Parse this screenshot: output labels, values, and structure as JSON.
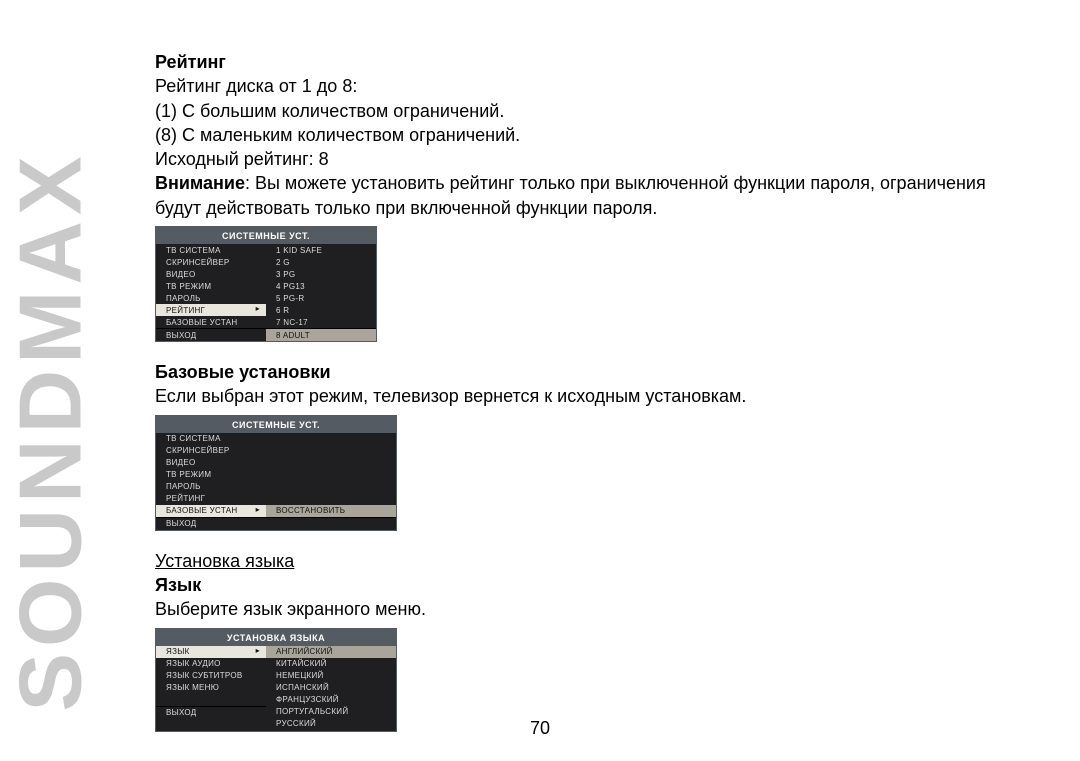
{
  "brand": "SOUNDMAX",
  "page_number": "70",
  "rating": {
    "heading": "Рейтинг",
    "line1": "Рейтинг диска от 1 до 8:",
    "line2": "(1) С большим количеством ограничений.",
    "line3": "(8) С маленьким количеством ограничений.",
    "line4": "Исходный рейтинг: 8",
    "warn_label": "Внимание",
    "warn_text": ": Вы можете установить рейтинг только при выключенной функции пароля, ограничения будут действовать только при включенной функции пароля."
  },
  "osd_rating": {
    "title": "СИСТЕМНЫЕ УСТ.",
    "left": [
      "ТВ СИСТЕМА",
      "СКРИНСЕЙВЕР",
      "ВИДЕО",
      "ТВ РЕЖИМ",
      "ПАРОЛЬ",
      "РЕЙТИНГ",
      "БАЗОВЫЕ УСТАН",
      "ВЫХОД"
    ],
    "right": [
      "1 KID SAFE",
      "2 G",
      "3 PG",
      "4 PG13",
      "5 PG-R",
      "6 R",
      "7 NC-17",
      "8 ADULT"
    ],
    "left_selected_index": 5,
    "right_selected_index": 7
  },
  "defaults": {
    "heading": "Базовые установки",
    "text": "Если выбран этот режим, телевизор вернется к исходным установкам."
  },
  "osd_defaults": {
    "title": "СИСТЕМНЫЕ УСТ.",
    "left": [
      "ТВ СИСТЕМА",
      "СКРИНСЕЙВЕР",
      "ВИДЕО",
      "ТВ РЕЖИМ",
      "ПАРОЛЬ",
      "РЕЙТИНГ",
      "БАЗОВЫЕ УСТАН",
      "ВЫХОД"
    ],
    "right_label": "ВОССТАНОВИТЬ",
    "left_selected_index": 6
  },
  "language": {
    "section_title": "Установка языка",
    "heading": "Язык",
    "text": "Выберите язык экранного меню."
  },
  "osd_language": {
    "title": "УСТАНОВКА ЯЗЫКА",
    "left": [
      "ЯЗЫК",
      "ЯЗЫК АУДИО",
      "ЯЗЫК СУБТИТРОВ",
      "ЯЗЫК МЕНЮ",
      "",
      "ВЫХОД"
    ],
    "right": [
      "АНГЛИЙСКИЙ",
      "КИТАЙСКИЙ",
      "НЕМЕЦКИЙ",
      "ИСПАНСКИЙ",
      "ФРАНЦУЗСКИЙ",
      "ПОРТУГАЛЬСКИЙ",
      "РУССКИЙ"
    ],
    "left_selected_index": 0,
    "right_selected_index": 0
  },
  "colors": {
    "osd_header_bg": "#555b63",
    "osd_body_bg": "#1f1f21",
    "osd_text": "#dcdcdc",
    "osd_sel_left_bg": "#e9e6de",
    "osd_sel_right_bg": "#a9a59b",
    "brand_color": "#c9c9c9",
    "page_bg": "#ffffff"
  }
}
